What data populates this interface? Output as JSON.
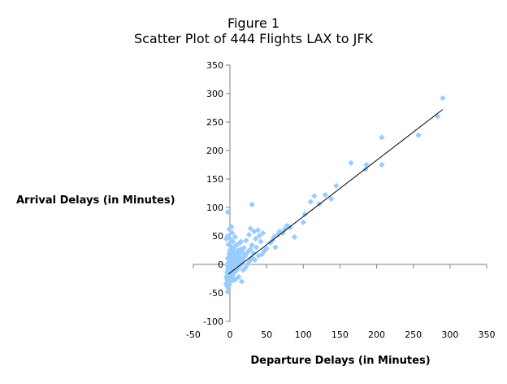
{
  "chart_data": {
    "type": "scatter",
    "title": "Figure 1",
    "subtitle": "Scatter Plot of 444 Flights LAX to JFK",
    "xlabel": "Departure Delays (in Minutes)",
    "ylabel": "Arrival Delays (in Minutes)",
    "xlim": [
      -50,
      350
    ],
    "ylim": [
      -100,
      350
    ],
    "x_ticks": [
      -50,
      0,
      50,
      100,
      150,
      200,
      250,
      300,
      350
    ],
    "y_ticks": [
      -100,
      -50,
      0,
      50,
      100,
      150,
      200,
      250,
      300,
      350
    ],
    "grid": false,
    "legend": "none",
    "marker_color": "#99CCFF",
    "trendline": {
      "x": [
        -2,
        290
      ],
      "y": [
        -17,
        272
      ],
      "color": "#000000"
    },
    "points": [
      {
        "x": -3,
        "y": -48
      },
      {
        "x": -2,
        "y": -42
      },
      {
        "x": -4,
        "y": -38
      },
      {
        "x": -1,
        "y": -36
      },
      {
        "x": -5,
        "y": -34
      },
      {
        "x": -2,
        "y": -33
      },
      {
        "x": 0,
        "y": -31
      },
      {
        "x": -3,
        "y": -29
      },
      {
        "x": -4,
        "y": -27
      },
      {
        "x": -1,
        "y": -26
      },
      {
        "x": 1,
        "y": -25
      },
      {
        "x": -2,
        "y": -24
      },
      {
        "x": 3,
        "y": -23
      },
      {
        "x": -5,
        "y": -22
      },
      {
        "x": 0,
        "y": -21
      },
      {
        "x": 2,
        "y": -20
      },
      {
        "x": -3,
        "y": -19
      },
      {
        "x": 4,
        "y": -18
      },
      {
        "x": -1,
        "y": -17
      },
      {
        "x": 1,
        "y": -16
      },
      {
        "x": 6,
        "y": -15
      },
      {
        "x": -4,
        "y": -14
      },
      {
        "x": 3,
        "y": -13
      },
      {
        "x": 0,
        "y": -12
      },
      {
        "x": 8,
        "y": -12
      },
      {
        "x": -2,
        "y": -11
      },
      {
        "x": 5,
        "y": -10
      },
      {
        "x": 2,
        "y": -9
      },
      {
        "x": 10,
        "y": -9
      },
      {
        "x": -3,
        "y": -8
      },
      {
        "x": 7,
        "y": -7
      },
      {
        "x": 0,
        "y": -6
      },
      {
        "x": 4,
        "y": -5
      },
      {
        "x": 12,
        "y": -5
      },
      {
        "x": -1,
        "y": -4
      },
      {
        "x": 9,
        "y": -3
      },
      {
        "x": 2,
        "y": -2
      },
      {
        "x": 14,
        "y": -2
      },
      {
        "x": -4,
        "y": -1
      },
      {
        "x": 6,
        "y": 0
      },
      {
        "x": 1,
        "y": 1
      },
      {
        "x": 11,
        "y": 1
      },
      {
        "x": 16,
        "y": 2
      },
      {
        "x": -2,
        "y": 3
      },
      {
        "x": 4,
        "y": 4
      },
      {
        "x": 8,
        "y": 5
      },
      {
        "x": 13,
        "y": 5
      },
      {
        "x": 0,
        "y": 6
      },
      {
        "x": 18,
        "y": 7
      },
      {
        "x": 3,
        "y": 8
      },
      {
        "x": 7,
        "y": 9
      },
      {
        "x": 10,
        "y": 10
      },
      {
        "x": -3,
        "y": 11
      },
      {
        "x": 15,
        "y": 12
      },
      {
        "x": 5,
        "y": 13
      },
      {
        "x": 20,
        "y": 14
      },
      {
        "x": 1,
        "y": 15
      },
      {
        "x": 9,
        "y": 16
      },
      {
        "x": 12,
        "y": 17
      },
      {
        "x": 22,
        "y": 18
      },
      {
        "x": -1,
        "y": 19
      },
      {
        "x": 6,
        "y": 20
      },
      {
        "x": 17,
        "y": 21
      },
      {
        "x": 3,
        "y": 22
      },
      {
        "x": 25,
        "y": 23
      },
      {
        "x": 11,
        "y": 24
      },
      {
        "x": 0,
        "y": 25
      },
      {
        "x": 14,
        "y": 26
      },
      {
        "x": 28,
        "y": 27
      },
      {
        "x": 5,
        "y": 28
      },
      {
        "x": 19,
        "y": 29
      },
      {
        "x": 2,
        "y": 31
      },
      {
        "x": 8,
        "y": 33
      },
      {
        "x": 30,
        "y": 34
      },
      {
        "x": -2,
        "y": 35
      },
      {
        "x": 13,
        "y": 37
      },
      {
        "x": 4,
        "y": 40
      },
      {
        "x": 22,
        "y": 42
      },
      {
        "x": 1,
        "y": 44
      },
      {
        "x": 35,
        "y": 45
      },
      {
        "x": 7,
        "y": 48
      },
      {
        "x": -3,
        "y": 50
      },
      {
        "x": 40,
        "y": 50
      },
      {
        "x": 26,
        "y": 52
      },
      {
        "x": 3,
        "y": 55
      },
      {
        "x": 45,
        "y": 55
      },
      {
        "x": 33,
        "y": 58
      },
      {
        "x": -1,
        "y": 62
      },
      {
        "x": 28,
        "y": 63
      },
      {
        "x": 2,
        "y": 66
      },
      {
        "x": 38,
        "y": 60
      },
      {
        "x": 42,
        "y": 40
      },
      {
        "x": 36,
        "y": 30
      },
      {
        "x": 32,
        "y": 20
      },
      {
        "x": 30,
        "y": 12
      },
      {
        "x": 27,
        "y": 6
      },
      {
        "x": 24,
        "y": 0
      },
      {
        "x": 21,
        "y": -6
      },
      {
        "x": 18,
        "y": -10
      },
      {
        "x": 50,
        "y": 28
      },
      {
        "x": 47,
        "y": 24
      },
      {
        "x": 44,
        "y": 18
      },
      {
        "x": 39,
        "y": 15
      },
      {
        "x": 34,
        "y": 8
      },
      {
        "x": 55,
        "y": 38
      },
      {
        "x": 58,
        "y": 42
      },
      {
        "x": 60,
        "y": 48
      },
      {
        "x": 62,
        "y": 30
      },
      {
        "x": 65,
        "y": 52
      },
      {
        "x": 68,
        "y": 58
      },
      {
        "x": 72,
        "y": 55
      },
      {
        "x": 75,
        "y": 62
      },
      {
        "x": 78,
        "y": 68
      },
      {
        "x": 82,
        "y": 65
      },
      {
        "x": 88,
        "y": 48
      },
      {
        "x": 100,
        "y": 74
      },
      {
        "x": 102,
        "y": 88
      },
      {
        "x": 110,
        "y": 110
      },
      {
        "x": 115,
        "y": 120
      },
      {
        "x": 122,
        "y": 106
      },
      {
        "x": 130,
        "y": 122
      },
      {
        "x": 138,
        "y": 115
      },
      {
        "x": 145,
        "y": 138
      },
      {
        "x": 165,
        "y": 178
      },
      {
        "x": 185,
        "y": 167
      },
      {
        "x": 186,
        "y": 175
      },
      {
        "x": 207,
        "y": 175
      },
      {
        "x": 207,
        "y": 223
      },
      {
        "x": 257,
        "y": 227
      },
      {
        "x": 283,
        "y": 260
      },
      {
        "x": 290,
        "y": 292
      },
      {
        "x": 30,
        "y": 105
      },
      {
        "x": -3,
        "y": 92
      },
      {
        "x": -5,
        "y": 45
      },
      {
        "x": 10,
        "y": 35
      },
      {
        "x": 15,
        "y": 40
      },
      {
        "x": 16,
        "y": -30
      },
      {
        "x": 5,
        "y": -28
      },
      {
        "x": 8,
        "y": -26
      },
      {
        "x": 12,
        "y": -22
      }
    ]
  }
}
